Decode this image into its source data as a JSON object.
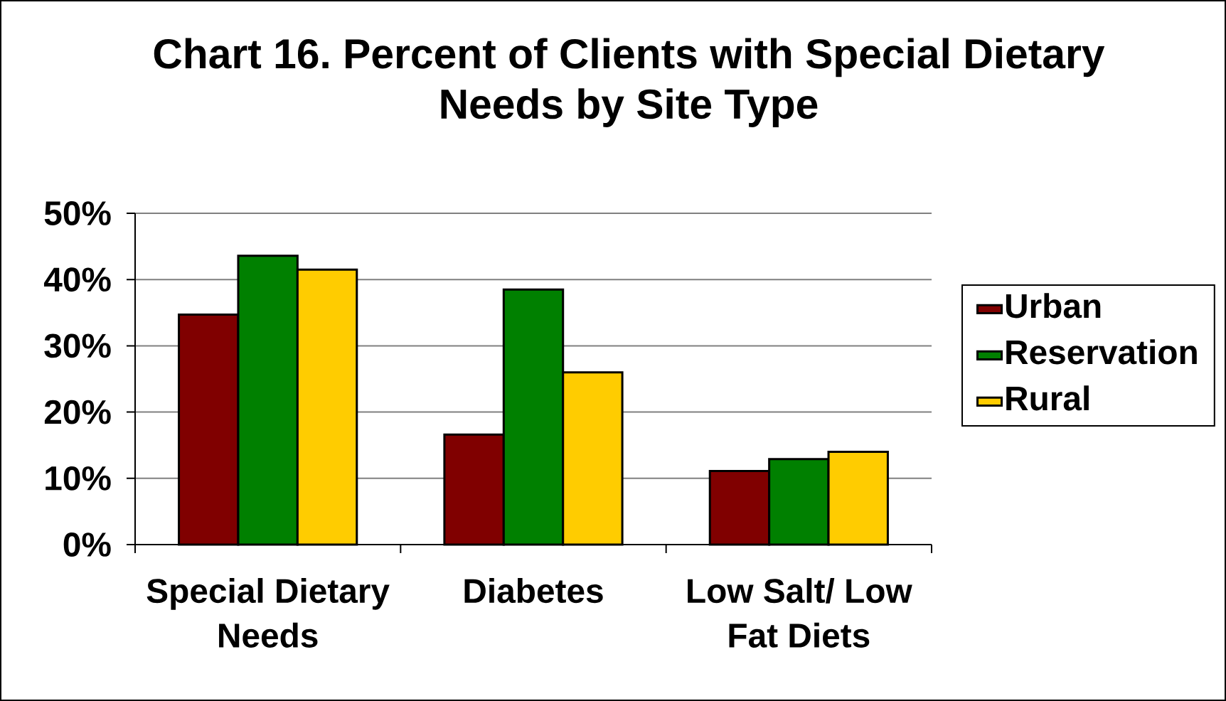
{
  "chart_data": {
    "type": "bar",
    "title": "Chart 16. Percent of Clients with Special Dietary Needs by Site Type",
    "categories": [
      "Special Dietary Needs",
      "Diabetes",
      "Low Salt/ Low Fat Diets"
    ],
    "series": [
      {
        "name": "Urban",
        "color": "#800000",
        "values": [
          34.7,
          16.6,
          11.1
        ]
      },
      {
        "name": "Reservation",
        "color": "#008000",
        "values": [
          43.6,
          38.5,
          12.9
        ]
      },
      {
        "name": "Rural",
        "color": "#ffcc00",
        "values": [
          41.5,
          26.0,
          14.0
        ]
      }
    ],
    "ylim": [
      0,
      50
    ],
    "yticks": [
      {
        "value": 0,
        "label": "0%"
      },
      {
        "value": 10,
        "label": "10%"
      },
      {
        "value": 20,
        "label": "20%"
      },
      {
        "value": 30,
        "label": "30%"
      },
      {
        "value": 40,
        "label": "40%"
      },
      {
        "value": 50,
        "label": "50%"
      }
    ],
    "grid": "y",
    "legend": "right"
  }
}
